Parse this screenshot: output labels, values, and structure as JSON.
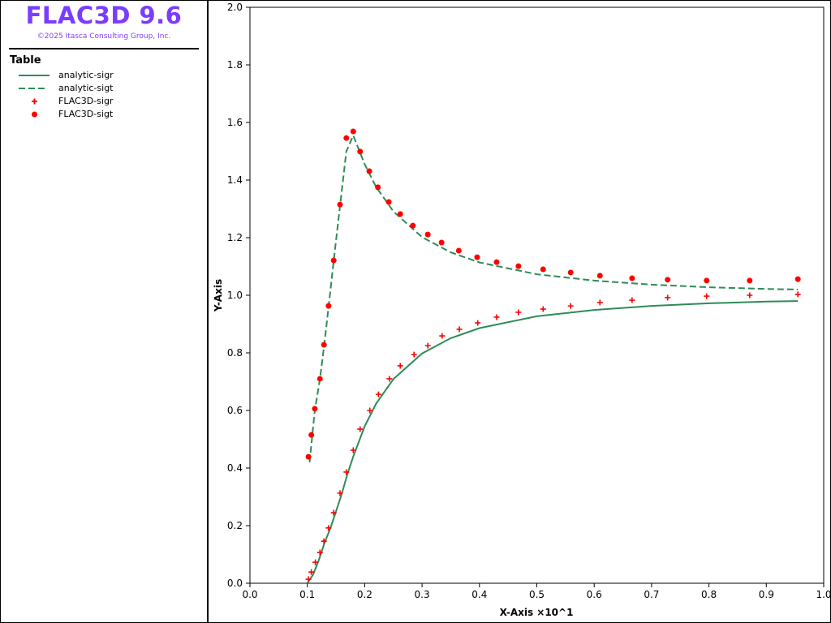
{
  "app": {
    "title": "FLAC3D 9.6",
    "copyright": "©2025 Itasca Consulting Group, Inc."
  },
  "legend": {
    "title": "Table",
    "items": [
      {
        "label": "analytic-sigr",
        "style": "solid-line",
        "color": "#2e8b57"
      },
      {
        "label": "analytic-sigt",
        "style": "dashed-line",
        "color": "#2e8b57"
      },
      {
        "label": "FLAC3D-sigr",
        "style": "plus-marker",
        "color": "#ff0000"
      },
      {
        "label": "FLAC3D-sigt",
        "style": "dot-marker",
        "color": "#ff0000"
      }
    ]
  },
  "chart_data": {
    "type": "line",
    "xlabel": "X-Axis ×10^1",
    "ylabel": "Y-Axis",
    "xlim": [
      0,
      1.0
    ],
    "ylim": [
      0,
      2.0
    ],
    "xticks": [
      "0.0",
      "0.1",
      "0.2",
      "0.3",
      "0.4",
      "0.5",
      "0.6",
      "0.7",
      "0.8",
      "0.9",
      "1.0"
    ],
    "yticks": [
      "0.0",
      "0.2",
      "0.4",
      "0.6",
      "0.8",
      "1.0",
      "1.2",
      "1.4",
      "1.6",
      "1.8",
      "2.0"
    ],
    "grid": false,
    "series": [
      {
        "name": "analytic-sigr",
        "kind": "line",
        "dash": false,
        "color": "#2e8b57",
        "x": [
          0.1,
          0.11,
          0.12,
          0.13,
          0.14,
          0.15,
          0.16,
          0.17,
          0.18,
          0.2,
          0.22,
          0.25,
          0.3,
          0.35,
          0.4,
          0.5,
          0.6,
          0.7,
          0.8,
          0.9,
          0.955
        ],
        "y": [
          0.0,
          0.03,
          0.08,
          0.14,
          0.19,
          0.25,
          0.31,
          0.38,
          0.44,
          0.545,
          0.624,
          0.709,
          0.798,
          0.851,
          0.886,
          0.927,
          0.949,
          0.963,
          0.972,
          0.978,
          0.98
        ]
      },
      {
        "name": "analytic-sigt",
        "kind": "line",
        "dash": true,
        "color": "#2e8b57",
        "x": [
          0.104,
          0.113,
          0.122,
          0.129,
          0.137,
          0.146,
          0.157,
          0.168,
          0.18,
          0.2,
          0.22,
          0.25,
          0.3,
          0.35,
          0.4,
          0.5,
          0.6,
          0.7,
          0.8,
          0.9,
          0.955
        ],
        "y": [
          0.42,
          0.6,
          0.71,
          0.82,
          0.96,
          1.12,
          1.31,
          1.5,
          1.555,
          1.455,
          1.376,
          1.291,
          1.202,
          1.149,
          1.114,
          1.073,
          1.051,
          1.037,
          1.028,
          1.022,
          1.02
        ]
      },
      {
        "name": "FLAC3D-sigr",
        "kind": "plus",
        "color": "#ff0000",
        "x": [
          0.102,
          0.107,
          0.114,
          0.122,
          0.129,
          0.137,
          0.146,
          0.157,
          0.168,
          0.18,
          0.192,
          0.209,
          0.224,
          0.243,
          0.262,
          0.286,
          0.31,
          0.335,
          0.365,
          0.397,
          0.43,
          0.468,
          0.511,
          0.559,
          0.61,
          0.666,
          0.728,
          0.796,
          0.871,
          0.955
        ],
        "y": [
          0.014,
          0.039,
          0.073,
          0.107,
          0.146,
          0.192,
          0.245,
          0.313,
          0.386,
          0.462,
          0.535,
          0.6,
          0.656,
          0.71,
          0.755,
          0.794,
          0.825,
          0.859,
          0.882,
          0.904,
          0.924,
          0.941,
          0.952,
          0.963,
          0.975,
          0.983,
          0.992,
          0.997,
          1.0,
          1.003
        ]
      },
      {
        "name": "FLAC3D-sigt",
        "kind": "dot",
        "color": "#ff0000",
        "x": [
          0.102,
          0.107,
          0.113,
          0.122,
          0.129,
          0.137,
          0.146,
          0.157,
          0.168,
          0.18,
          0.192,
          0.208,
          0.223,
          0.242,
          0.262,
          0.284,
          0.31,
          0.334,
          0.364,
          0.396,
          0.43,
          0.468,
          0.511,
          0.559,
          0.61,
          0.666,
          0.728,
          0.796,
          0.871,
          0.955
        ],
        "y": [
          0.439,
          0.515,
          0.606,
          0.71,
          0.828,
          0.963,
          1.121,
          1.315,
          1.546,
          1.569,
          1.499,
          1.431,
          1.375,
          1.324,
          1.282,
          1.242,
          1.211,
          1.183,
          1.155,
          1.132,
          1.115,
          1.101,
          1.09,
          1.079,
          1.068,
          1.059,
          1.054,
          1.051,
          1.051,
          1.056
        ]
      }
    ]
  }
}
